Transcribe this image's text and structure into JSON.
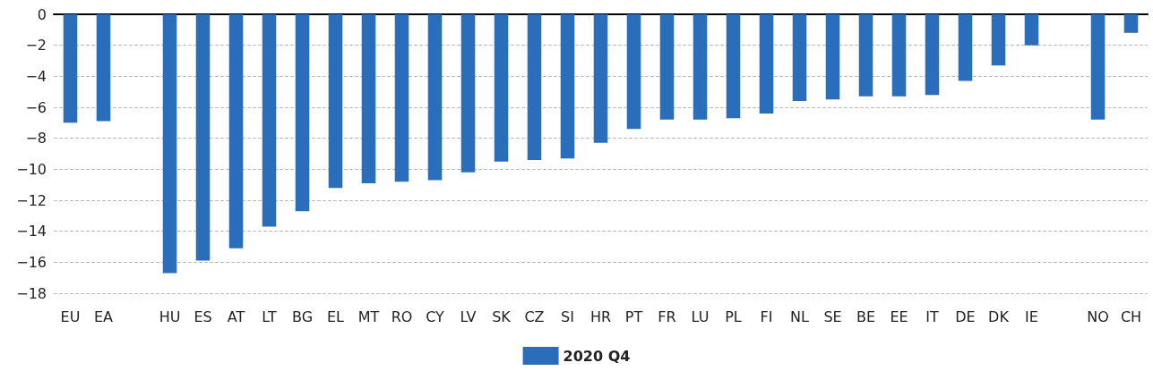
{
  "chart_data": {
    "type": "bar",
    "categories": [
      "EU",
      "EA",
      null,
      "HU",
      "ES",
      "AT",
      "LT",
      "BG",
      "EL",
      "MT",
      "RO",
      "CY",
      "LV",
      "SK",
      "CZ",
      "SI",
      "HR",
      "PT",
      "FR",
      "LU",
      "PL",
      "FI",
      "NL",
      "SE",
      "BE",
      "EE",
      "IT",
      "DE",
      "DK",
      "IE",
      null,
      "NO",
      "CH"
    ],
    "series": [
      {
        "name": "2020 Q4",
        "color": "#2a6ebb",
        "values": [
          -7.0,
          -6.9,
          null,
          -16.7,
          -15.9,
          -15.1,
          -13.7,
          -12.7,
          -11.2,
          -10.9,
          -10.8,
          -10.7,
          -10.2,
          -9.5,
          -9.4,
          -9.3,
          -8.3,
          -7.4,
          -6.8,
          -6.8,
          -6.7,
          -6.4,
          -5.6,
          -5.5,
          -5.3,
          -5.3,
          -5.2,
          -4.3,
          -3.3,
          -2.0,
          null,
          -6.8,
          -1.2
        ]
      }
    ],
    "ylim": [
      -18,
      0
    ],
    "yticks": [
      -18,
      -16,
      -14,
      -12,
      -10,
      -8,
      -6,
      -4,
      -2,
      0
    ],
    "grid": "y",
    "legend": "bottom"
  }
}
